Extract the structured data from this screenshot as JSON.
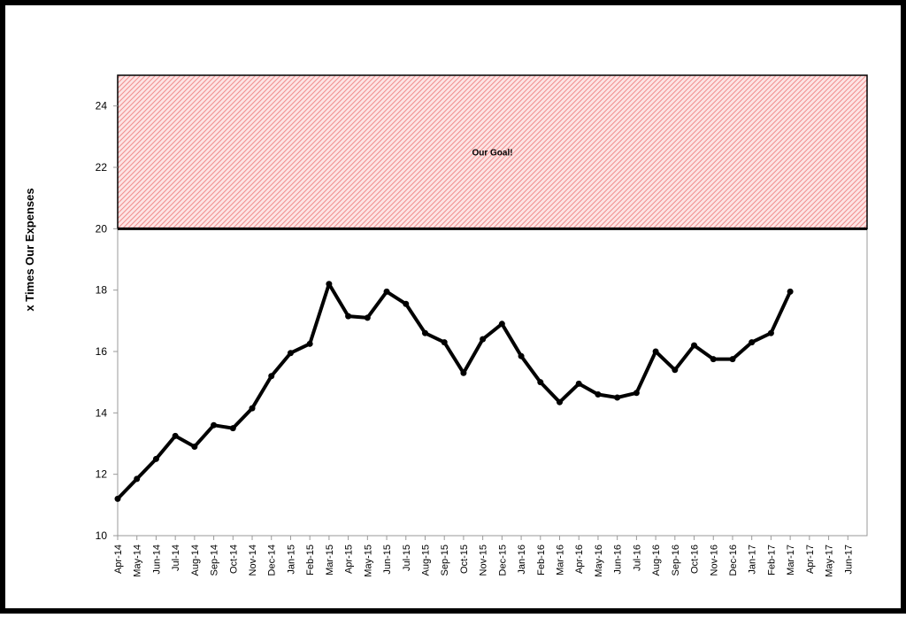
{
  "chart_data": {
    "type": "line",
    "y_label": "x Times Our Expenses",
    "categories": [
      "Apr-14",
      "May-14",
      "Jun-14",
      "Jul-14",
      "Aug-14",
      "Sep-14",
      "Oct-14",
      "Nov-14",
      "Dec-14",
      "Jan-15",
      "Feb-15",
      "Mar-15",
      "Apr-15",
      "May-15",
      "Jun-15",
      "Jul-15",
      "Aug-15",
      "Sep-15",
      "Oct-15",
      "Nov-15",
      "Dec-15",
      "Jan-16",
      "Feb-16",
      "Mar-16",
      "Apr-16",
      "May-16",
      "Jun-16",
      "Jul-16",
      "Aug-16",
      "Sep-16",
      "Oct-16",
      "Nov-16",
      "Dec-16",
      "Jan-17",
      "Feb-17",
      "Mar-17",
      "Apr-17",
      "May-17",
      "Jun-17"
    ],
    "series": [
      {
        "name": "x Times Our Expenses",
        "color": "#000000",
        "values": [
          11.2,
          11.85,
          12.5,
          13.25,
          12.9,
          13.6,
          13.5,
          14.15,
          15.2,
          15.95,
          16.25,
          18.2,
          17.15,
          17.1,
          17.95,
          17.55,
          16.6,
          16.3,
          15.3,
          16.4,
          16.9,
          15.85,
          15.0,
          14.35,
          14.95,
          14.6,
          14.5,
          14.65,
          16.0,
          15.4,
          16.2,
          15.75,
          15.75,
          16.3,
          16.6,
          17.95,
          null,
          null,
          null
        ]
      }
    ],
    "goal_band": {
      "label": "Our Goal!",
      "from": 20,
      "to": 25,
      "color": "#f4a6a6"
    },
    "ylim": [
      10,
      25
    ],
    "yticks": [
      10,
      12,
      14,
      16,
      18,
      20,
      22,
      24
    ],
    "grid": false
  }
}
